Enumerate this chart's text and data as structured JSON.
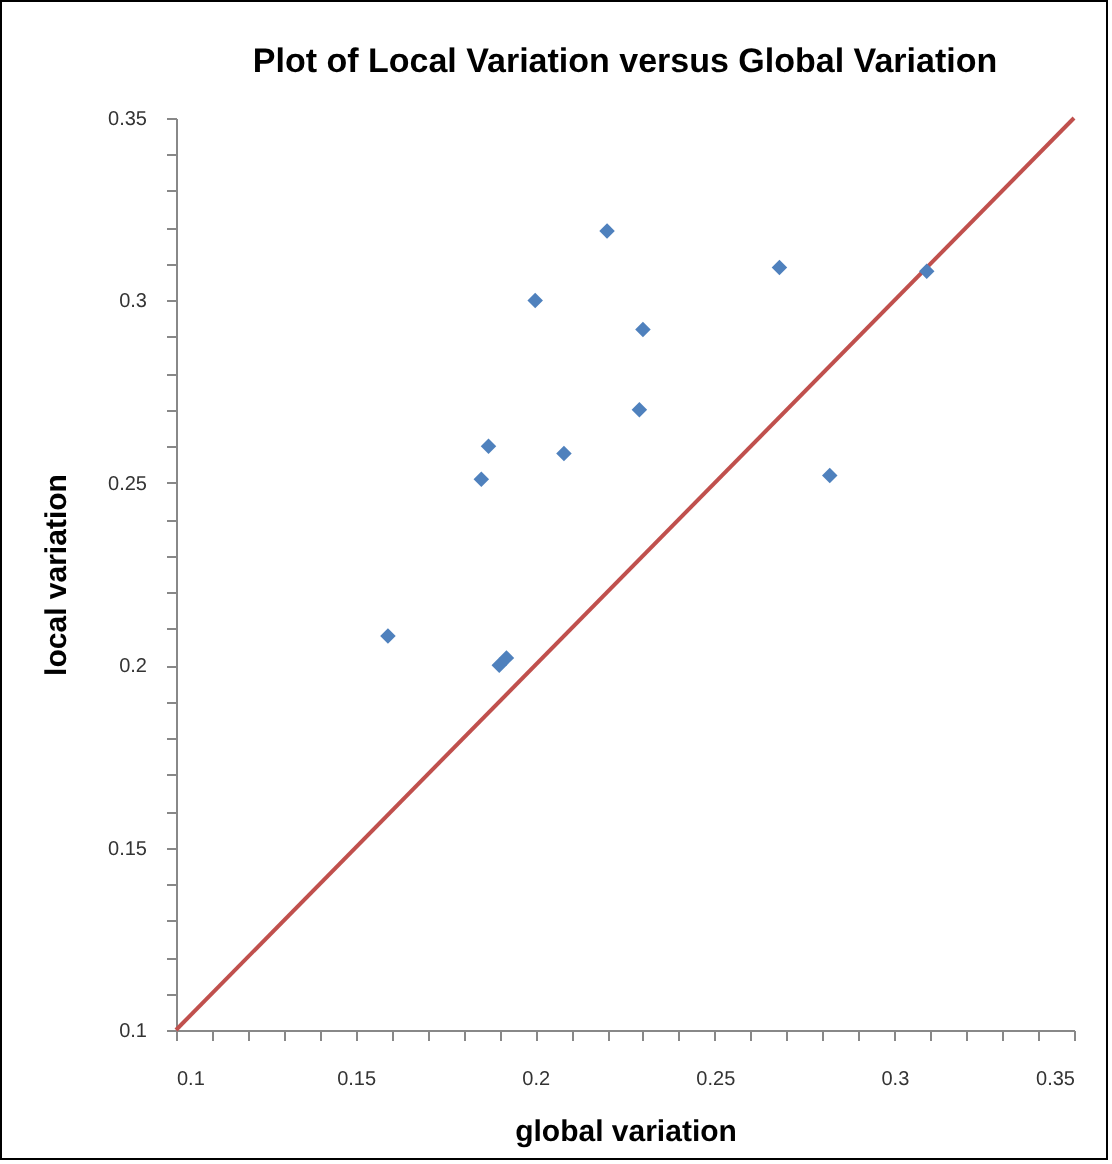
{
  "chart_data": {
    "type": "scatter",
    "title": "Plot of Local Variation versus Global Variation",
    "xlabel": "global variation",
    "ylabel": "local variation",
    "marker": "diamond",
    "grid": false,
    "xlim": [
      0.1,
      0.35
    ],
    "ylim": [
      0.1,
      0.35
    ],
    "xticks": [
      0.1,
      {
        "value": 0.11,
        "label": null
      },
      {
        "value": 0.12,
        "label": null
      },
      {
        "value": 0.13,
        "label": null
      },
      {
        "value": 0.14,
        "label": null
      },
      0.15,
      {
        "value": 0.16,
        "label": null
      },
      {
        "value": 0.17,
        "label": null
      },
      {
        "value": 0.18,
        "label": null
      },
      {
        "value": 0.19,
        "label": null
      },
      0.2,
      {
        "value": 0.21,
        "label": null
      },
      {
        "value": 0.22,
        "label": null
      },
      {
        "value": 0.23,
        "label": null
      },
      {
        "value": 0.24,
        "label": null
      },
      0.25,
      {
        "value": 0.26,
        "label": null
      },
      {
        "value": 0.27,
        "label": null
      },
      {
        "value": 0.28,
        "label": null
      },
      {
        "value": 0.29,
        "label": null
      },
      0.3,
      {
        "value": 0.31,
        "label": null
      },
      {
        "value": 0.32,
        "label": null
      },
      {
        "value": 0.33,
        "label": null
      },
      {
        "value": 0.34,
        "label": null
      },
      0.35
    ],
    "yticks": [
      0.1,
      {
        "value": 0.11,
        "label": null
      },
      {
        "value": 0.12,
        "label": null
      },
      {
        "value": 0.13,
        "label": null
      },
      {
        "value": 0.14,
        "label": null
      },
      0.15,
      {
        "value": 0.16,
        "label": null
      },
      {
        "value": 0.17,
        "label": null
      },
      {
        "value": 0.18,
        "label": null
      },
      {
        "value": 0.19,
        "label": null
      },
      0.2,
      {
        "value": 0.21,
        "label": null
      },
      {
        "value": 0.22,
        "label": null
      },
      {
        "value": 0.23,
        "label": null
      },
      {
        "value": 0.24,
        "label": null
      },
      0.25,
      {
        "value": 0.26,
        "label": null
      },
      {
        "value": 0.27,
        "label": null
      },
      {
        "value": 0.28,
        "label": null
      },
      {
        "value": 0.29,
        "label": null
      },
      0.3,
      {
        "value": 0.31,
        "label": null
      },
      {
        "value": 0.32,
        "label": null
      },
      {
        "value": 0.33,
        "label": null
      },
      {
        "value": 0.34,
        "label": null
      },
      0.35
    ],
    "series": [
      {
        "color": "#4f81bd",
        "x": [
          0.22,
          0.2,
          0.23,
          0.229,
          0.187,
          0.208,
          0.185,
          0.159,
          0.19,
          0.192,
          0.268,
          0.309,
          0.282
        ],
        "values": [
          0.319,
          0.3,
          0.292,
          0.27,
          0.26,
          0.258,
          0.251,
          0.208,
          0.2,
          0.202,
          0.309,
          0.308,
          0.252
        ]
      },
      {
        "type": "line",
        "color": "#c0504d",
        "marker": "none",
        "x": [
          0.1,
          0.35
        ],
        "values": [
          0.1,
          0.35
        ]
      }
    ]
  }
}
